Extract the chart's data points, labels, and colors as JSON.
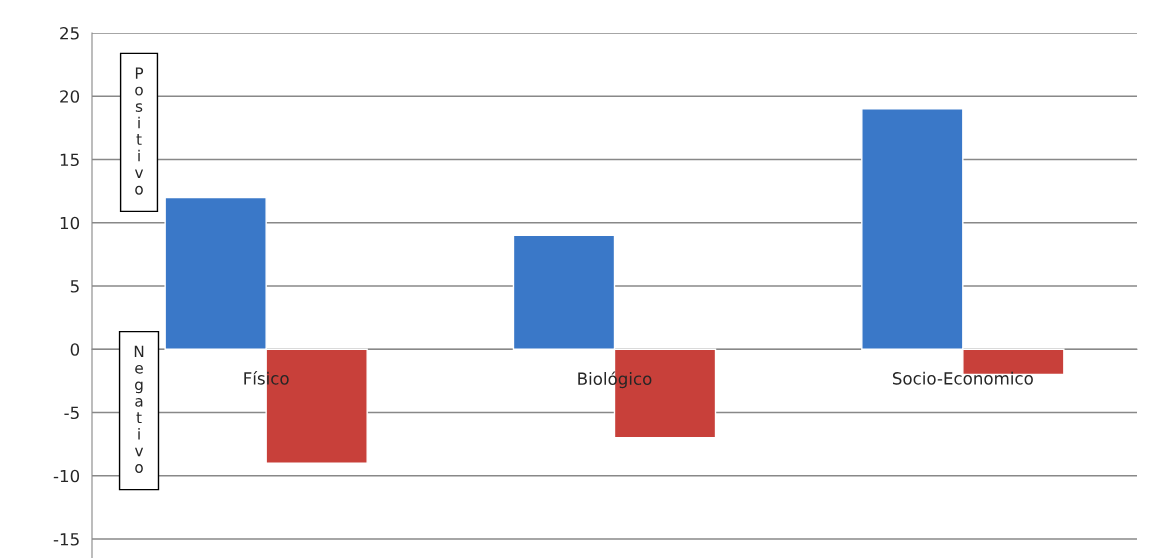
{
  "chart_data": {
    "type": "bar",
    "categories": [
      "Físico",
      "Biológico",
      "Socio-Economico"
    ],
    "series": [
      {
        "color": "#3a78c8",
        "values": [
          12,
          9,
          19
        ]
      },
      {
        "color": "#c8403a",
        "values": [
          -9,
          -7,
          -2
        ]
      }
    ],
    "ylim": [
      -16.5,
      25
    ],
    "yticks": [
      -15,
      -10,
      -5,
      0,
      5,
      10,
      15,
      20,
      25
    ],
    "grid": "y",
    "annotations": [
      "Positivo",
      "Negativo"
    ]
  }
}
